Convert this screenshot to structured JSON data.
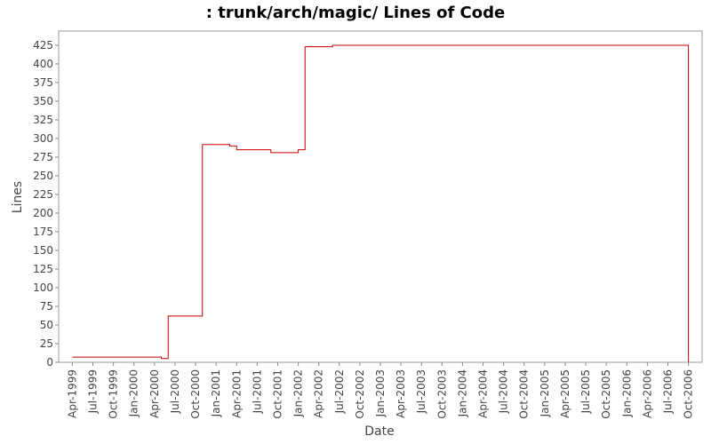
{
  "chart_data": {
    "type": "step",
    "title": ": trunk/arch/magic/ Lines of Code",
    "x_label": "Date",
    "y_label": "Lines",
    "series": [
      {
        "name": "Lines",
        "color": "#cc0000",
        "x": [
          "1999-04",
          "2000-05",
          "2000-06",
          "2000-11",
          "2000-11",
          "2001-03",
          "2001-04",
          "2001-09",
          "2002-01",
          "2002-02",
          "2002-06",
          "2006-10",
          "2006-10"
        ],
        "values": [
          7,
          5,
          62,
          75,
          292,
          290,
          285,
          281,
          285,
          423,
          425,
          425,
          0
        ]
      }
    ],
    "xlim": [
      "1999-02",
      "2006-12"
    ],
    "xticks": [
      {
        "value": "1999-04",
        "label": "Apr-1999"
      },
      {
        "value": "1999-07",
        "label": "Jul-1999"
      },
      {
        "value": "1999-10",
        "label": "Oct-1999"
      },
      {
        "value": "2000-01",
        "label": "Jan-2000"
      },
      {
        "value": "2000-04",
        "label": "Apr-2000"
      },
      {
        "value": "2000-07",
        "label": "Jul-2000"
      },
      {
        "value": "2000-10",
        "label": "Oct-2000"
      },
      {
        "value": "2001-01",
        "label": "Jan-2001"
      },
      {
        "value": "2001-04",
        "label": "Apr-2001"
      },
      {
        "value": "2001-07",
        "label": "Jul-2001"
      },
      {
        "value": "2001-10",
        "label": "Oct-2001"
      },
      {
        "value": "2002-01",
        "label": "Jan-2002"
      },
      {
        "value": "2002-04",
        "label": "Apr-2002"
      },
      {
        "value": "2002-07",
        "label": "Jul-2002"
      },
      {
        "value": "2002-10",
        "label": "Oct-2002"
      },
      {
        "value": "2003-01",
        "label": "Jan-2003"
      },
      {
        "value": "2003-04",
        "label": "Apr-2003"
      },
      {
        "value": "2003-07",
        "label": "Jul-2003"
      },
      {
        "value": "2003-10",
        "label": "Oct-2003"
      },
      {
        "value": "2004-01",
        "label": "Jan-2004"
      },
      {
        "value": "2004-04",
        "label": "Apr-2004"
      },
      {
        "value": "2004-07",
        "label": "Jul-2004"
      },
      {
        "value": "2004-10",
        "label": "Oct-2004"
      },
      {
        "value": "2005-01",
        "label": "Jan-2005"
      },
      {
        "value": "2005-04",
        "label": "Apr-2005"
      },
      {
        "value": "2005-07",
        "label": "Jul-2005"
      },
      {
        "value": "2005-10",
        "label": "Oct-2005"
      },
      {
        "value": "2006-01",
        "label": "Jan-2006"
      },
      {
        "value": "2006-04",
        "label": "Apr-2006"
      },
      {
        "value": "2006-07",
        "label": "Jul-2006"
      },
      {
        "value": "2006-10",
        "label": "Oct-2006"
      }
    ],
    "ylim": [
      0,
      444
    ],
    "yticks": [
      0,
      25,
      50,
      75,
      100,
      125,
      150,
      175,
      200,
      225,
      250,
      275,
      300,
      325,
      350,
      375,
      400,
      425
    ],
    "grid": false
  }
}
